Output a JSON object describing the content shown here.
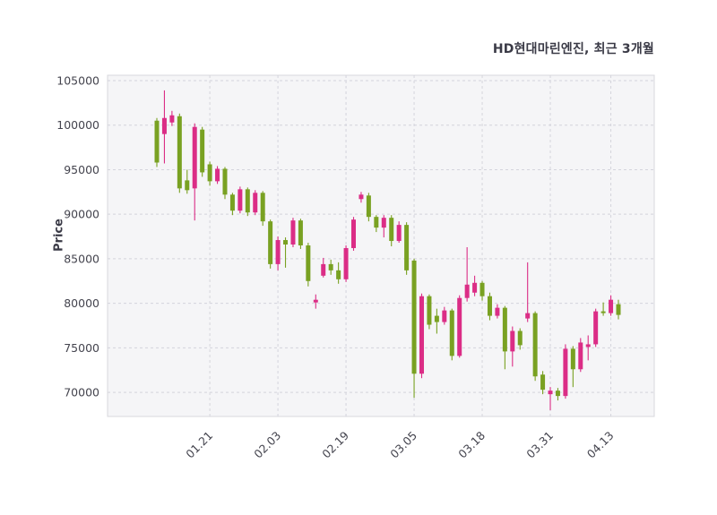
{
  "title": "HD현대마린엔진, 최근 3개월",
  "chart_data": {
    "type": "candlestick",
    "title": "HD현대마린엔진, 최근 3개월",
    "ylabel": "Price",
    "xlabel": "",
    "grid": true,
    "grid_style": "dashed",
    "plot_bg_color": "#f5f5f7",
    "grid_color": "#d4d4dc",
    "spine_color": "#d8d8de",
    "text_color": "#44444e",
    "up_color": "#db2d86",
    "down_color": "#79a122",
    "y_ticks": [
      70000,
      75000,
      80000,
      85000,
      90000,
      95000,
      100000,
      105000
    ],
    "y_range": [
      67300,
      105600
    ],
    "x_tick_labels": [
      "01.21",
      "02.03",
      "02.19",
      "03.05",
      "03.18",
      "03.31",
      "04.13"
    ],
    "x_tick_indices": [
      7,
      16,
      25,
      34,
      43,
      52,
      60
    ],
    "columns": [
      "open",
      "high",
      "low",
      "close"
    ],
    "candles": [
      [
        100500,
        100800,
        95300,
        95800
      ],
      [
        99000,
        103900,
        95700,
        100800
      ],
      [
        100300,
        101600,
        99900,
        101100
      ],
      [
        101000,
        101300,
        92400,
        92900
      ],
      [
        93800,
        95000,
        92300,
        92700
      ],
      [
        92900,
        100200,
        89300,
        99800
      ],
      [
        99500,
        99800,
        94200,
        94700
      ],
      [
        95600,
        95900,
        93200,
        93700
      ],
      [
        93700,
        95400,
        93400,
        95100
      ],
      [
        95100,
        95300,
        91700,
        92200
      ],
      [
        92200,
        92400,
        89900,
        90400
      ],
      [
        90400,
        93100,
        90100,
        92800
      ],
      [
        92800,
        93000,
        89800,
        90200
      ],
      [
        90200,
        92700,
        89900,
        92400
      ],
      [
        92400,
        92600,
        88700,
        89200
      ],
      [
        89200,
        89400,
        83900,
        84400
      ],
      [
        84400,
        87500,
        83700,
        87100
      ],
      [
        87100,
        87400,
        84000,
        86600
      ],
      [
        86600,
        89600,
        86300,
        89300
      ],
      [
        89300,
        89500,
        86100,
        86500
      ],
      [
        86500,
        86800,
        81900,
        82500
      ],
      [
        80100,
        81000,
        79400,
        80400
      ],
      [
        83100,
        85100,
        82900,
        84400
      ],
      [
        84400,
        84900,
        83200,
        83700
      ],
      [
        83700,
        84600,
        82200,
        82700
      ],
      [
        82700,
        86500,
        82400,
        86200
      ],
      [
        86200,
        89700,
        85900,
        89400
      ],
      [
        91700,
        92500,
        91300,
        92200
      ],
      [
        92100,
        92400,
        89200,
        89700
      ],
      [
        89700,
        89900,
        88000,
        88500
      ],
      [
        88500,
        89900,
        87400,
        89600
      ],
      [
        89600,
        89900,
        86400,
        87000
      ],
      [
        87000,
        89200,
        86800,
        88800
      ],
      [
        88800,
        89100,
        83200,
        83700
      ],
      [
        84800,
        85000,
        69400,
        72100
      ],
      [
        72100,
        81100,
        71600,
        80800
      ],
      [
        80800,
        81000,
        77100,
        77600
      ],
      [
        78600,
        79400,
        76600,
        77900
      ],
      [
        77900,
        79600,
        77600,
        79200
      ],
      [
        79200,
        79400,
        73600,
        74100
      ],
      [
        74100,
        80900,
        73900,
        80600
      ],
      [
        80600,
        86300,
        80200,
        82100
      ],
      [
        81200,
        83100,
        80800,
        82300
      ],
      [
        82300,
        82500,
        80300,
        80800
      ],
      [
        80800,
        81200,
        78100,
        78600
      ],
      [
        78600,
        79900,
        78300,
        79500
      ],
      [
        79500,
        79700,
        72600,
        74600
      ],
      [
        74600,
        77400,
        72900,
        76900
      ],
      [
        76900,
        77200,
        74800,
        75300
      ],
      [
        78300,
        84600,
        77900,
        78900
      ],
      [
        78900,
        79100,
        71300,
        71800
      ],
      [
        72000,
        72400,
        69800,
        70300
      ],
      [
        69800,
        70600,
        68000,
        70200
      ],
      [
        70200,
        70500,
        69100,
        69600
      ],
      [
        69600,
        75400,
        69300,
        74900
      ],
      [
        74900,
        75200,
        70600,
        72600
      ],
      [
        72600,
        76100,
        72300,
        75600
      ],
      [
        75100,
        76400,
        73600,
        75400
      ],
      [
        75400,
        79400,
        75100,
        79100
      ],
      [
        79100,
        80100,
        78600,
        78900
      ],
      [
        78900,
        80900,
        78600,
        80400
      ],
      [
        79900,
        80400,
        78200,
        78700
      ]
    ]
  }
}
